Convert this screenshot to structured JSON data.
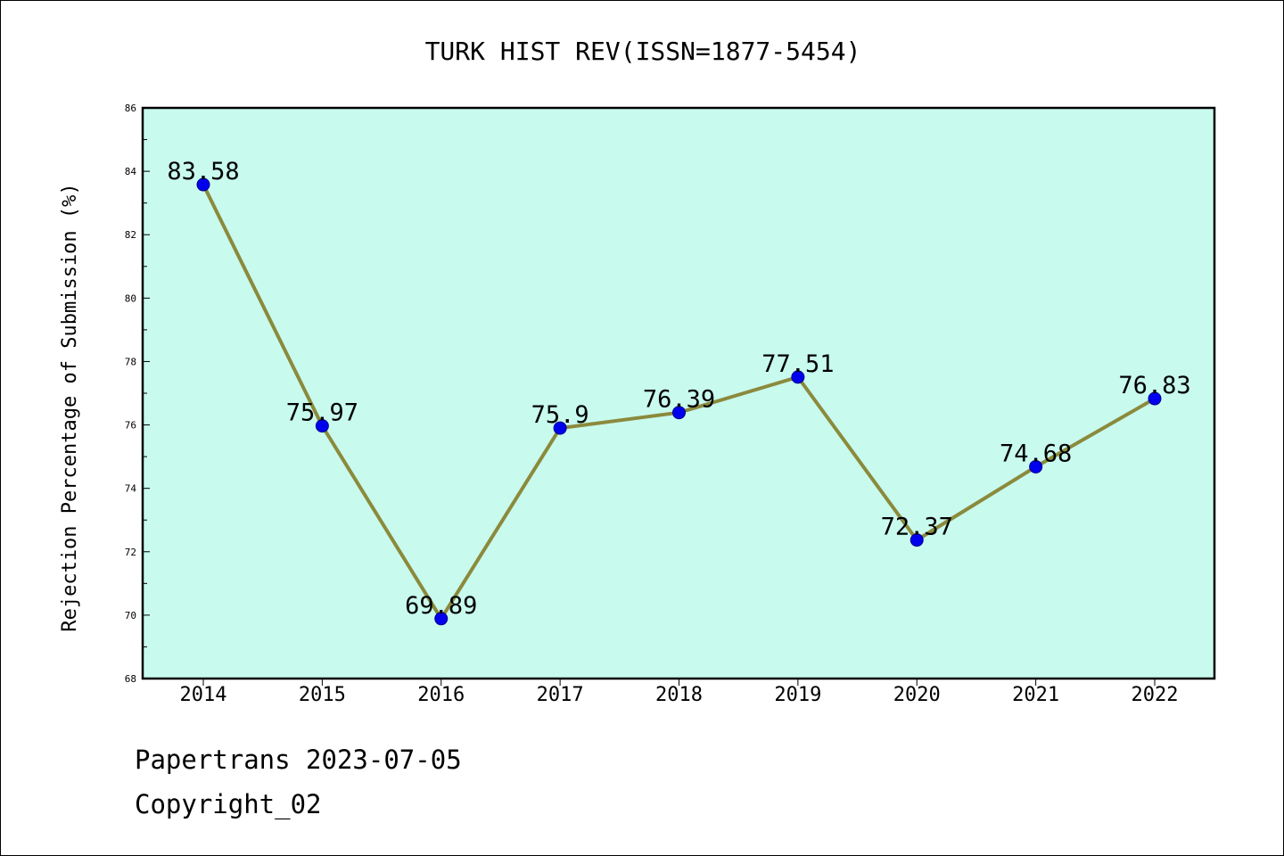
{
  "chart_data": {
    "type": "line",
    "title": "TURK HIST REV(ISSN=1877-5454)",
    "xlabel": "",
    "ylabel": "Rejection Percentage of Submission (%)",
    "categories": [
      "2014",
      "2015",
      "2016",
      "2017",
      "2018",
      "2019",
      "2020",
      "2021",
      "2022"
    ],
    "series": [
      {
        "values": [
          83.58,
          75.97,
          69.89,
          75.9,
          76.39,
          77.51,
          72.37,
          74.68,
          76.83
        ],
        "labels": [
          "83.58",
          "75.97",
          "69.89",
          "75.9",
          "76.39",
          "77.51",
          "72.37",
          "74.68",
          "76.83"
        ]
      }
    ],
    "ylim": [
      68,
      86
    ],
    "yticks": [
      "68",
      "70",
      "72",
      "74",
      "76",
      "78",
      "80",
      "82",
      "84",
      "86"
    ],
    "grid": false,
    "colors": {
      "plot_background": "#c8faee",
      "line": "#8b8a3c",
      "marker_fill": "#0000ee",
      "marker_edge": "#00008b"
    }
  },
  "footer": {
    "source": "Papertrans 2023-07-05",
    "copyright": "Copyright_02"
  }
}
